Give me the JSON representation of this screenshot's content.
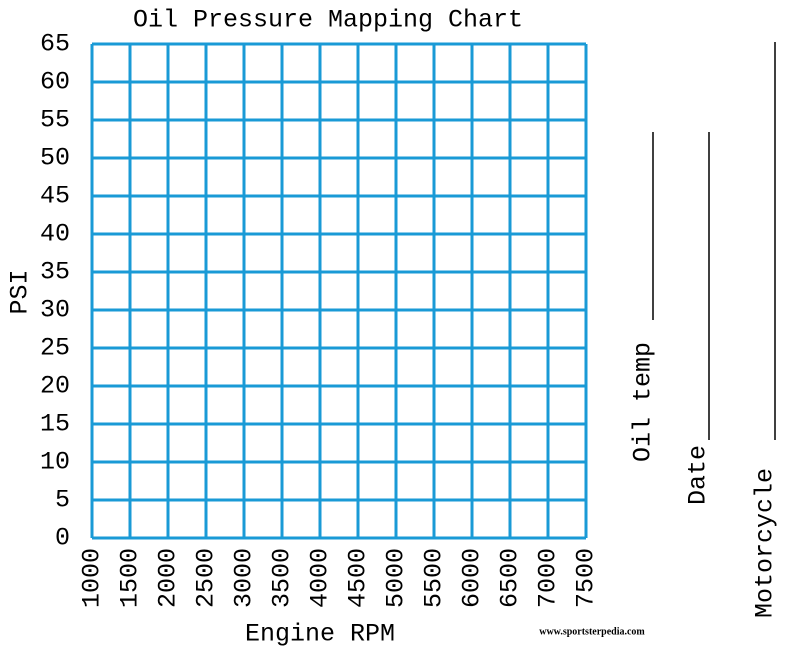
{
  "chart_data": {
    "type": "line",
    "title": "Oil Pressure Mapping Chart",
    "xlabel": "Engine RPM",
    "ylabel": "PSI",
    "xlim": [
      1000,
      7500
    ],
    "xticks": [
      1000,
      1500,
      2000,
      2500,
      3000,
      3500,
      4000,
      4500,
      5000,
      5500,
      6000,
      6500,
      7000,
      7500
    ],
    "ylim": [
      0,
      65
    ],
    "yticks": [
      0,
      5,
      10,
      15,
      20,
      25,
      30,
      35,
      40,
      45,
      50,
      55,
      60,
      65
    ],
    "grid": true,
    "grid_color": "#1a9ad6",
    "series": [],
    "fields": [
      "Oil temp",
      "Date",
      "Motorcycle"
    ],
    "source": "www.sportsterpedia.com"
  }
}
